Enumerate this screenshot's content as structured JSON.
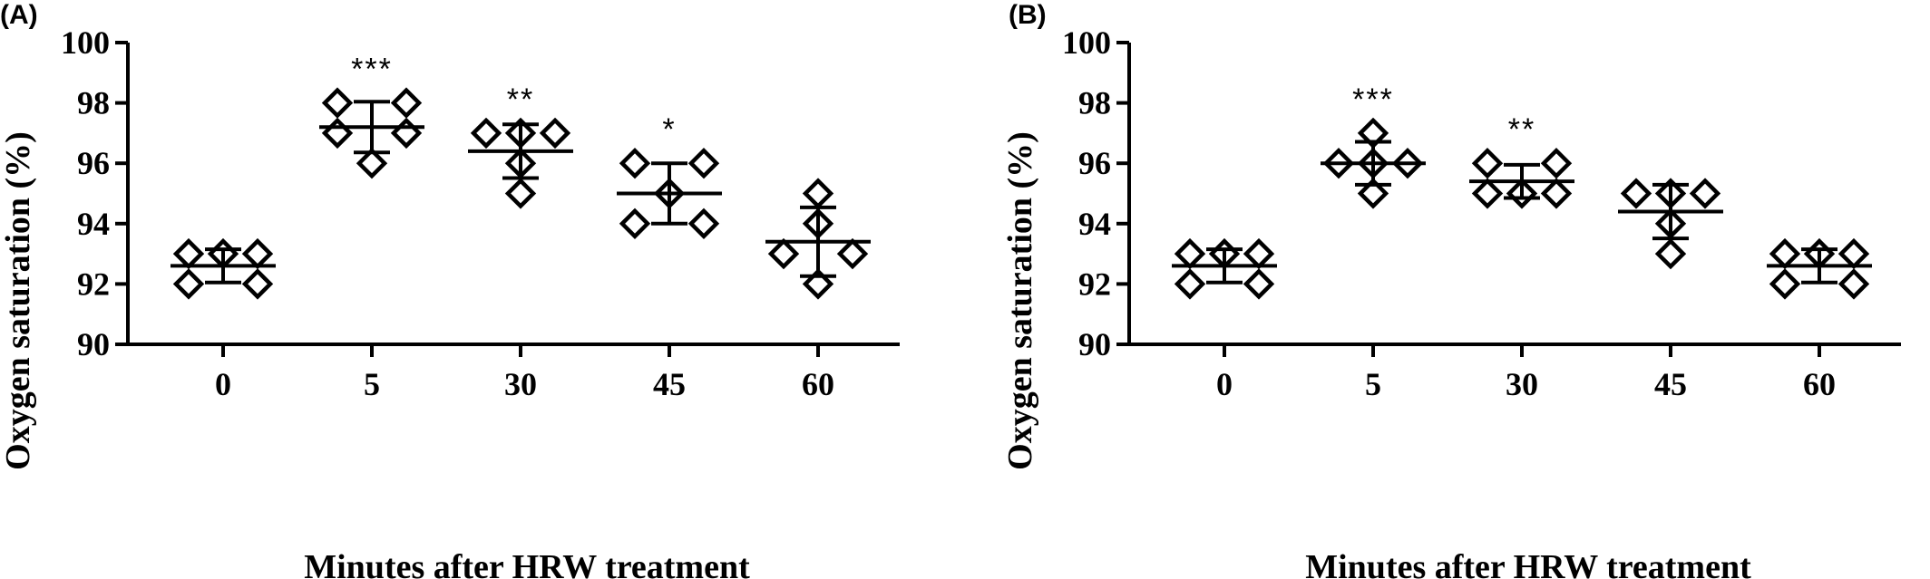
{
  "chart_data": [
    {
      "type": "scatter",
      "panel_label": "(A)",
      "xlabel": "Minutes after HRW treatment",
      "ylabel": "Oxygen saturation (%)",
      "categories": [
        "0",
        "5",
        "30",
        "45",
        "60"
      ],
      "ylim": [
        90,
        100
      ],
      "yticks": [
        90,
        92,
        94,
        96,
        98,
        100
      ],
      "groups": [
        {
          "category": "0",
          "points": [
            92,
            93,
            93,
            93,
            92
          ],
          "mean": 92.6,
          "sd": 0.55,
          "significance": ""
        },
        {
          "category": "5",
          "points": [
            98,
            97,
            96,
            98,
            97
          ],
          "mean": 97.2,
          "sd": 0.84,
          "significance": "***"
        },
        {
          "category": "30",
          "points": [
            97,
            96,
            95,
            97,
            97
          ],
          "mean": 96.4,
          "sd": 0.89,
          "significance": "**"
        },
        {
          "category": "45",
          "points": [
            94,
            96,
            95,
            96,
            94
          ],
          "mean": 95.0,
          "sd": 1.0,
          "significance": "*"
        },
        {
          "category": "60",
          "points": [
            93,
            92,
            94,
            95,
            93
          ],
          "mean": 93.4,
          "sd": 1.14,
          "significance": ""
        }
      ]
    },
    {
      "type": "scatter",
      "panel_label": "(B)",
      "xlabel": "Minutes after HRW treatment",
      "ylabel": "Oxygen saturation (%)",
      "categories": [
        "0",
        "5",
        "30",
        "45",
        "60"
      ],
      "ylim": [
        90,
        100
      ],
      "yticks": [
        90,
        92,
        94,
        96,
        98,
        100
      ],
      "groups": [
        {
          "category": "0",
          "points": [
            92,
            93,
            93,
            93,
            92
          ],
          "mean": 92.6,
          "sd": 0.55,
          "significance": ""
        },
        {
          "category": "5",
          "points": [
            96,
            95,
            97,
            96,
            96
          ],
          "mean": 96.0,
          "sd": 0.71,
          "significance": "***"
        },
        {
          "category": "30",
          "points": [
            95,
            96,
            95,
            95,
            96
          ],
          "mean": 95.4,
          "sd": 0.55,
          "significance": "**"
        },
        {
          "category": "45",
          "points": [
            95,
            93,
            94,
            95,
            95
          ],
          "mean": 94.4,
          "sd": 0.89,
          "significance": ""
        },
        {
          "category": "60",
          "points": [
            92,
            93,
            93,
            93,
            92
          ],
          "mean": 92.6,
          "sd": 0.55,
          "significance": ""
        }
      ]
    }
  ]
}
